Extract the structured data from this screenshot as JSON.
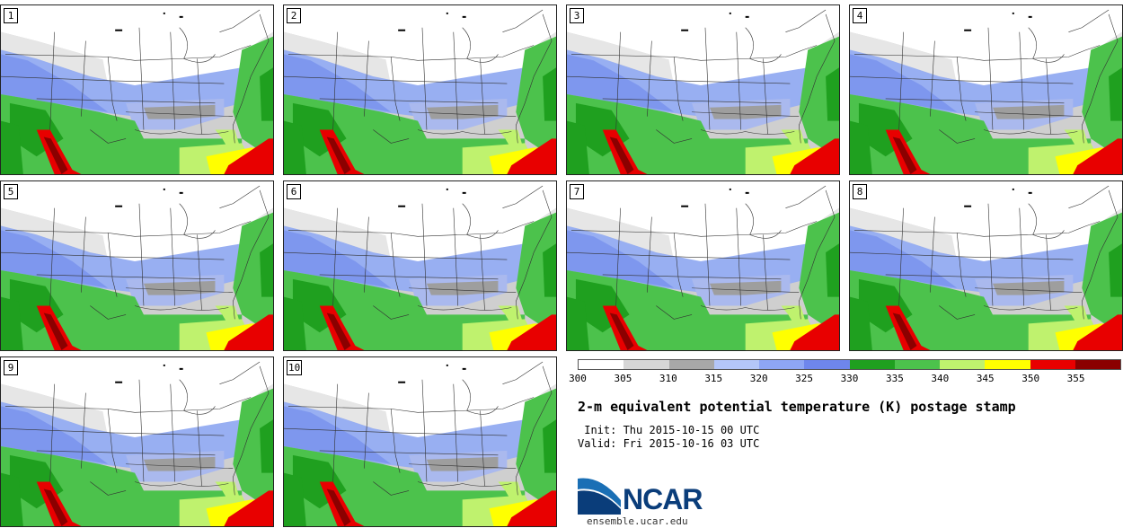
{
  "stamps": [
    {
      "label": "1"
    },
    {
      "label": "2"
    },
    {
      "label": "3"
    },
    {
      "label": "4"
    },
    {
      "label": "5"
    },
    {
      "label": "6"
    },
    {
      "label": "7"
    },
    {
      "label": "8"
    },
    {
      "label": "9"
    },
    {
      "label": "10"
    }
  ],
  "colorbar": {
    "colors": [
      "#ffffff",
      "#d6d6d6",
      "#a8a8a8",
      "#b4c6f8",
      "#8ea6f4",
      "#6e86ec",
      "#1fa01f",
      "#4cc24c",
      "#bff26e",
      "#ffff00",
      "#e80000",
      "#8b0000"
    ],
    "ticks": [
      "300",
      "305",
      "310",
      "315",
      "320",
      "325",
      "330",
      "335",
      "340",
      "345",
      "350",
      "355"
    ]
  },
  "title": "2-m equivalent potential temperature (K) postage stamp",
  "init_line": " Init: Thu 2015-10-15 00 UTC",
  "valid_line": "Valid: Fri 2015-10-16 03 UTC",
  "logo": {
    "text": "NCAR",
    "url": "ensemble.ucar.edu"
  }
}
